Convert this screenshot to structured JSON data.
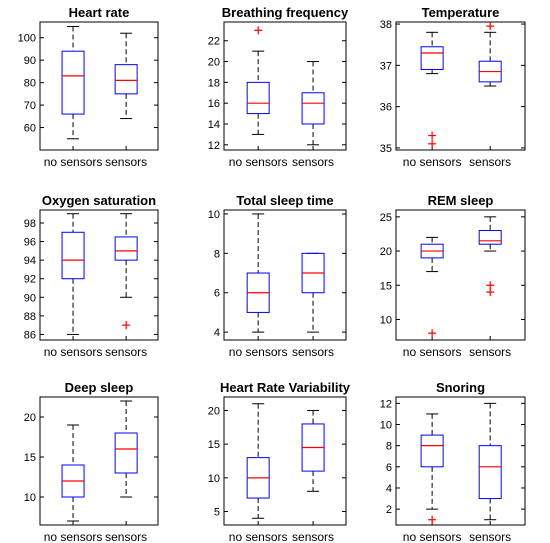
{
  "colors": {
    "box": "#0000ff",
    "median": "#ff0000",
    "whisker": "#000000",
    "outlier": "#ff0000",
    "axes": "#000000"
  },
  "chart_data": [
    {
      "type": "boxplot",
      "title": "Heart rate",
      "ylim": [
        50,
        107
      ],
      "yticks": [
        60,
        70,
        80,
        90,
        100
      ],
      "categories": [
        "no sensors",
        "sensors"
      ],
      "boxes": [
        {
          "min": 55,
          "q1": 66,
          "median": 83,
          "q3": 94,
          "max": 105,
          "outliers": []
        },
        {
          "min": 64,
          "q1": 75,
          "median": 81,
          "q3": 88,
          "max": 102,
          "outliers": []
        }
      ]
    },
    {
      "type": "boxplot",
      "title": "Breathing frequency",
      "ylim": [
        11.5,
        23.8
      ],
      "yticks": [
        12,
        14,
        16,
        18,
        20,
        22
      ],
      "categories": [
        "no sensors",
        "sensors"
      ],
      "boxes": [
        {
          "min": 13,
          "q1": 15,
          "median": 16,
          "q3": 18,
          "max": 21,
          "outliers": [
            23
          ]
        },
        {
          "min": 12,
          "q1": 14,
          "median": 16,
          "q3": 17,
          "max": 20,
          "outliers": []
        }
      ]
    },
    {
      "type": "boxplot",
      "title": "Temperature",
      "ylim": [
        34.95,
        38.05
      ],
      "yticks": [
        35,
        36,
        37,
        38
      ],
      "categories": [
        "no sensors",
        "sensors"
      ],
      "boxes": [
        {
          "min": 36.8,
          "q1": 36.9,
          "median": 37.3,
          "q3": 37.45,
          "max": 37.8,
          "outliers": [
            35.3,
            35.1
          ]
        },
        {
          "min": 36.5,
          "q1": 36.6,
          "median": 36.85,
          "q3": 37.1,
          "max": 37.8,
          "outliers": [
            37.95
          ]
        }
      ]
    },
    {
      "type": "boxplot",
      "title": "Oxygen saturation",
      "ylim": [
        85.4,
        99.4
      ],
      "yticks": [
        86,
        88,
        90,
        92,
        94,
        96,
        98
      ],
      "categories": [
        "no sensors",
        "sensors"
      ],
      "boxes": [
        {
          "min": 86,
          "q1": 92,
          "median": 94,
          "q3": 97,
          "max": 99,
          "outliers": []
        },
        {
          "min": 90,
          "q1": 94,
          "median": 95,
          "q3": 96.5,
          "max": 99,
          "outliers": [
            87
          ]
        }
      ]
    },
    {
      "type": "boxplot",
      "title": "Total sleep time",
      "ylim": [
        3.6,
        10.2
      ],
      "yticks": [
        4,
        6,
        8,
        10
      ],
      "categories": [
        "no sensors",
        "sensors"
      ],
      "boxes": [
        {
          "min": 4,
          "q1": 5,
          "median": 6,
          "q3": 7,
          "max": 10,
          "outliers": []
        },
        {
          "min": 4,
          "q1": 6,
          "median": 7,
          "q3": 8,
          "max": 8,
          "outliers": []
        }
      ]
    },
    {
      "type": "boxplot",
      "title": "REM sleep",
      "ylim": [
        7,
        26
      ],
      "yticks": [
        10,
        15,
        20,
        25
      ],
      "categories": [
        "no sensors",
        "sensors"
      ],
      "boxes": [
        {
          "min": 17,
          "q1": 19,
          "median": 20,
          "q3": 21,
          "max": 22,
          "outliers": [
            8
          ]
        },
        {
          "min": 20,
          "q1": 21,
          "median": 21.5,
          "q3": 23,
          "max": 25,
          "outliers": [
            15,
            14
          ]
        }
      ]
    },
    {
      "type": "boxplot",
      "title": "Deep sleep",
      "ylim": [
        6.5,
        22.5
      ],
      "yticks": [
        10,
        15,
        20
      ],
      "categories": [
        "no sensors",
        "sensors"
      ],
      "boxes": [
        {
          "min": 7,
          "q1": 10,
          "median": 12,
          "q3": 14,
          "max": 19,
          "outliers": []
        },
        {
          "min": 10,
          "q1": 13,
          "median": 16,
          "q3": 18,
          "max": 22,
          "outliers": []
        }
      ]
    },
    {
      "type": "boxplot",
      "title": "Heart Rate Variability",
      "ylim": [
        3,
        22
      ],
      "yticks": [
        5,
        10,
        15,
        20
      ],
      "categories": [
        "no sensors",
        "sensors"
      ],
      "boxes": [
        {
          "min": 4,
          "q1": 7,
          "median": 10,
          "q3": 13,
          "max": 21,
          "outliers": []
        },
        {
          "min": 8,
          "q1": 11,
          "median": 14.5,
          "q3": 18,
          "max": 20,
          "outliers": []
        }
      ]
    },
    {
      "type": "boxplot",
      "title": "Snoring",
      "ylim": [
        0.5,
        12.6
      ],
      "yticks": [
        2,
        4,
        6,
        8,
        10,
        12
      ],
      "categories": [
        "no sensors",
        "sensors"
      ],
      "boxes": [
        {
          "min": 2,
          "q1": 6,
          "median": 8,
          "q3": 9,
          "max": 11,
          "outliers": [
            1
          ]
        },
        {
          "min": 1,
          "q1": 3,
          "median": 6,
          "q3": 8,
          "max": 12,
          "outliers": []
        }
      ]
    }
  ]
}
